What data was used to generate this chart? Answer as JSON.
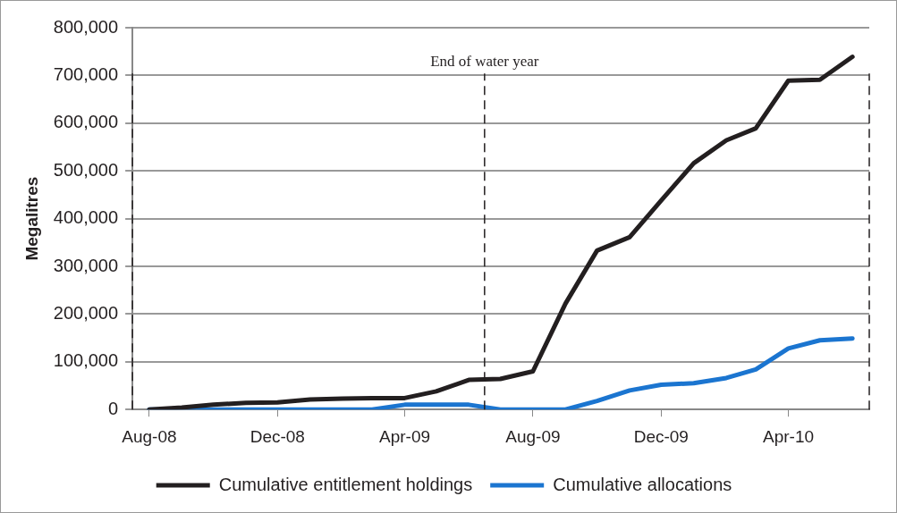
{
  "chart_data": {
    "type": "line",
    "ylabel": "Megalitres",
    "x": [
      "2008-08",
      "2008-09",
      "2008-10",
      "2008-11",
      "2008-12",
      "2009-01",
      "2009-02",
      "2009-03",
      "2009-04",
      "2009-05",
      "2009-06",
      "2009-07",
      "2009-08",
      "2009-09",
      "2009-10",
      "2009-11",
      "2009-12",
      "2010-01",
      "2010-02",
      "2010-03",
      "2010-04",
      "2010-05",
      "2010-06"
    ],
    "series": [
      {
        "name": "Cumulative entitlement holdings",
        "color": "#231f20",
        "values": [
          0,
          4000,
          10000,
          14000,
          15000,
          21000,
          23000,
          24000,
          24000,
          38000,
          62000,
          64000,
          80000,
          222000,
          333000,
          361000,
          438000,
          516000,
          564000,
          589000,
          689000,
          691000,
          739000
        ]
      },
      {
        "name": "Cumulative allocations",
        "color": "#1b75d0",
        "values": [
          0,
          0,
          0,
          0,
          0,
          0,
          0,
          0,
          10000,
          10000,
          10000,
          0,
          0,
          0,
          18000,
          40000,
          52000,
          55000,
          66000,
          84000,
          128000,
          145000,
          149000
        ]
      }
    ],
    "xlim": [
      "2008-07-16",
      "2010-06-17"
    ],
    "xticks": [
      {
        "value": "2008-08",
        "label": "Aug-08"
      },
      {
        "value": "2008-12",
        "label": "Dec-08"
      },
      {
        "value": "2009-04",
        "label": "Apr-09"
      },
      {
        "value": "2009-08",
        "label": "Aug-09"
      },
      {
        "value": "2009-12",
        "label": "Dec-09"
      },
      {
        "value": "2010-04",
        "label": "Apr-10"
      }
    ],
    "ylim": [
      0,
      800000
    ],
    "yticks": [
      {
        "value": 0,
        "label": "0"
      },
      {
        "value": 100000,
        "label": "100,000"
      },
      {
        "value": 200000,
        "label": "200,000"
      },
      {
        "value": 300000,
        "label": "300,000"
      },
      {
        "value": 400000,
        "label": "400,000"
      },
      {
        "value": 500000,
        "label": "500,000"
      },
      {
        "value": 600000,
        "label": "600,000"
      },
      {
        "value": 700000,
        "label": "700,000"
      },
      {
        "value": 800000,
        "label": "800,000"
      }
    ],
    "ref_lines": [
      {
        "axis": "x",
        "value": "2008-07-16",
        "line_style": "dashed",
        "color": "#231f20"
      },
      {
        "axis": "x",
        "value": "2009-06-16",
        "label": "End of water year",
        "line_style": "dashed",
        "color": "#231f20"
      },
      {
        "axis": "x",
        "value": "2010-06-17",
        "line_style": "dashed",
        "color": "#231f20"
      }
    ],
    "grid": "y",
    "legend": "bottom",
    "marker": "none",
    "line_style": "solid"
  }
}
